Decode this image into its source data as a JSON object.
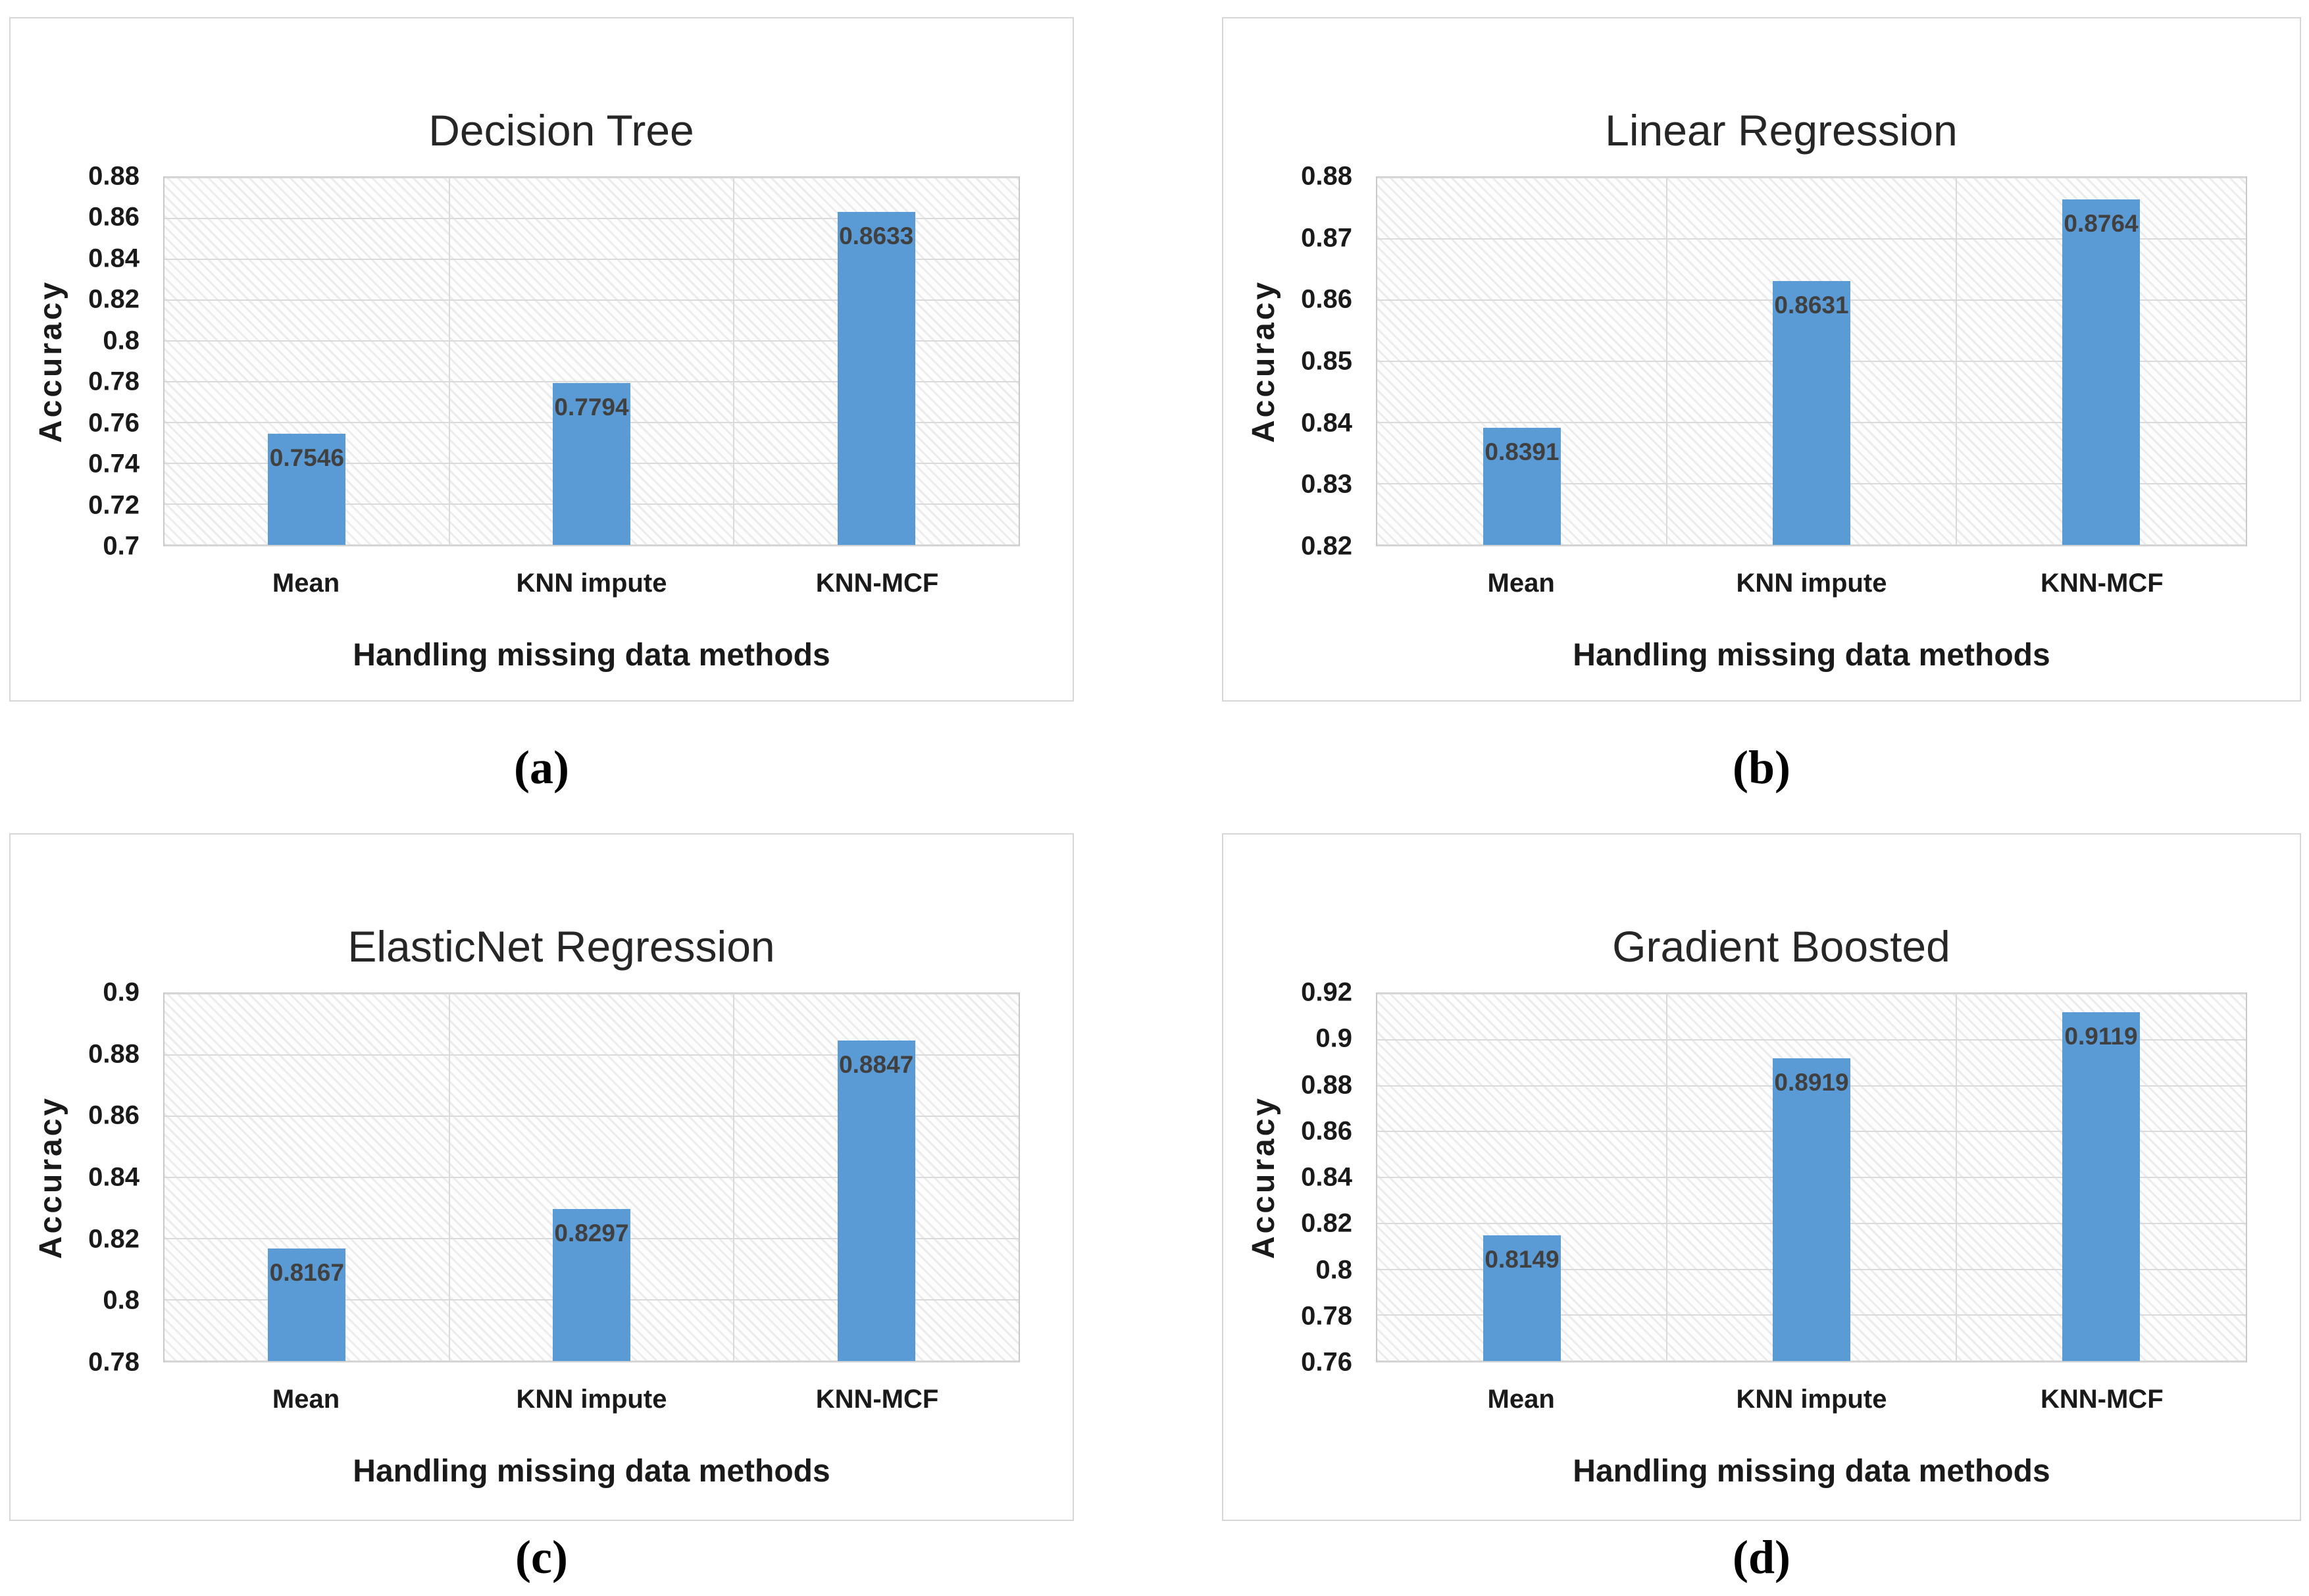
{
  "figure": {
    "background": "#ffffff",
    "caption_labels": [
      "(a)",
      "(b)",
      "(c)",
      "(d)"
    ]
  },
  "colors": {
    "bar": "#5B9BD5",
    "bar_label_text": "#404040",
    "gridline": "#DADADA",
    "plot_border": "#C9C9C9",
    "panel_border": "#D6D6D6",
    "axis_text": "#1a1a1a",
    "title_text": "#262626"
  },
  "chart_data": [
    {
      "type": "bar",
      "panel": "a",
      "caption": "(a)",
      "title": "Decision Tree",
      "xlabel": "Handling missing data methods",
      "ylabel": "Accuracy",
      "categories": [
        "Mean",
        "KNN impute",
        "KNN-MCF"
      ],
      "values": [
        0.7546,
        0.7794,
        0.8633
      ],
      "value_labels": [
        "0.7546",
        "0.7794",
        "0.8633"
      ],
      "ylim": [
        0.7,
        0.88
      ],
      "ytick_labels": [
        "0.88",
        "0.86",
        "0.84",
        "0.82",
        "0.8",
        "0.78",
        "0.76",
        "0.74",
        "0.72",
        "0.7"
      ],
      "grid": "horizontal and vertical gridlines, hatched plot background",
      "legend": "none"
    },
    {
      "type": "bar",
      "panel": "b",
      "caption": "(b)",
      "title": "Linear Regression",
      "xlabel": "Handling missing data methods",
      "ylabel": "Accuracy",
      "categories": [
        "Mean",
        "KNN impute",
        "KNN-MCF"
      ],
      "values": [
        0.8391,
        0.8631,
        0.8764
      ],
      "value_labels": [
        "0.8391",
        "0.8631",
        "0.8764"
      ],
      "ylim": [
        0.82,
        0.88
      ],
      "ytick_labels": [
        "0.88",
        "0.87",
        "0.86",
        "0.85",
        "0.84",
        "0.83",
        "0.82"
      ],
      "grid": "horizontal and vertical gridlines, hatched plot background",
      "legend": "none"
    },
    {
      "type": "bar",
      "panel": "c",
      "caption": "(c)",
      "title": "ElasticNet Regression",
      "xlabel": "Handling missing data methods",
      "ylabel": "Accuracy",
      "categories": [
        "Mean",
        "KNN impute",
        "KNN-MCF"
      ],
      "values": [
        0.8167,
        0.8297,
        0.8847
      ],
      "value_labels": [
        "0.8167",
        "0.8297",
        "0.8847"
      ],
      "ylim": [
        0.78,
        0.9
      ],
      "ytick_labels": [
        "0.9",
        "0.88",
        "0.86",
        "0.84",
        "0.82",
        "0.8",
        "0.78"
      ],
      "grid": "horizontal and vertical gridlines, hatched plot background",
      "legend": "none"
    },
    {
      "type": "bar",
      "panel": "d",
      "caption": "(d)",
      "title": "Gradient Boosted",
      "xlabel": "Handling missing data methods",
      "ylabel": "Accuracy",
      "categories": [
        "Mean",
        "KNN impute",
        "KNN-MCF"
      ],
      "values": [
        0.8149,
        0.8919,
        0.9119
      ],
      "value_labels": [
        "0.8149",
        "0.8919",
        "0.9119"
      ],
      "ylim": [
        0.76,
        0.92
      ],
      "ytick_labels": [
        "0.92",
        "0.9",
        "0.88",
        "0.86",
        "0.84",
        "0.82",
        "0.8",
        "0.78",
        "0.76"
      ],
      "grid": "horizontal and vertical gridlines, hatched plot background",
      "legend": "none"
    }
  ]
}
